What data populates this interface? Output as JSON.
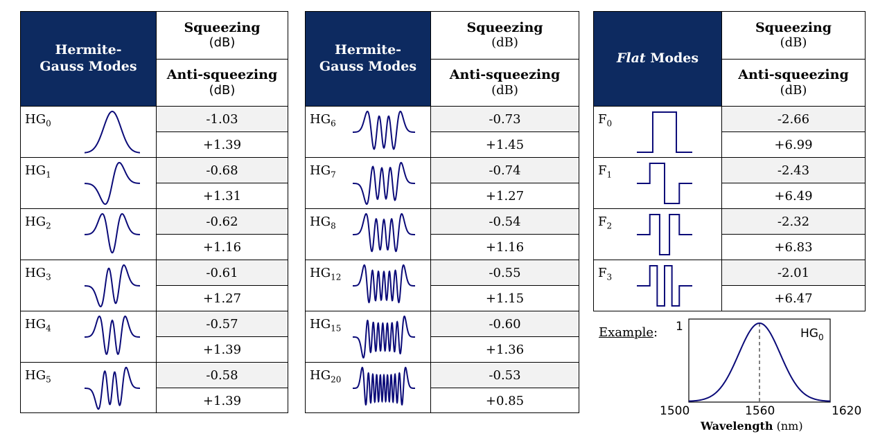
{
  "table1": {
    "header": {
      "modes": "Hermite-Gauss Modes",
      "squeezing": "Squeezing",
      "squeezing_unit": "(dB)",
      "anti": "Anti-squeezing",
      "anti_unit": "(dB)"
    },
    "rows": [
      {
        "label": "HG",
        "sub": "0",
        "squeezing": "-1.03",
        "anti": "+1.39"
      },
      {
        "label": "HG",
        "sub": "1",
        "squeezing": "-0.68",
        "anti": "+1.31"
      },
      {
        "label": "HG",
        "sub": "2",
        "squeezing": "-0.62",
        "anti": "+1.16"
      },
      {
        "label": "HG",
        "sub": "3",
        "squeezing": "-0.61",
        "anti": "+1.27"
      },
      {
        "label": "HG",
        "sub": "4",
        "squeezing": "-0.57",
        "anti": "+1.39"
      },
      {
        "label": "HG",
        "sub": "5",
        "squeezing": "-0.58",
        "anti": "+1.39"
      }
    ]
  },
  "table2": {
    "header": {
      "modes": "Hermite-Gauss Modes",
      "squeezing": "Squeezing",
      "squeezing_unit": "(dB)",
      "anti": "Anti-squeezing",
      "anti_unit": "(dB)"
    },
    "rows": [
      {
        "label": "HG",
        "sub": "6",
        "squeezing": "-0.73",
        "anti": "+1.45"
      },
      {
        "label": "HG",
        "sub": "7",
        "squeezing": "-0.74",
        "anti": "+1.27"
      },
      {
        "label": "HG",
        "sub": "8",
        "squeezing": "-0.54",
        "anti": "+1.16"
      },
      {
        "label": "HG",
        "sub": "12",
        "squeezing": "-0.55",
        "anti": "+1.15"
      },
      {
        "label": "HG",
        "sub": "15",
        "squeezing": "-0.60",
        "anti": "+1.36"
      },
      {
        "label": "HG",
        "sub": "20",
        "squeezing": "-0.53",
        "anti": "+0.85"
      }
    ]
  },
  "table3": {
    "header": {
      "modes_italic": "Flat",
      "modes_rest": " Modes",
      "squeezing": "Squeezing",
      "squeezing_unit": "(dB)",
      "anti": "Anti-squeezing",
      "anti_unit": "(dB)"
    },
    "rows": [
      {
        "label": "F",
        "sub": "0",
        "squeezing": "-2.66",
        "anti": "+6.99"
      },
      {
        "label": "F",
        "sub": "1",
        "squeezing": "-2.43",
        "anti": "+6.49"
      },
      {
        "label": "F",
        "sub": "2",
        "squeezing": "-2.32",
        "anti": "+6.83"
      },
      {
        "label": "F",
        "sub": "3",
        "squeezing": "-2.01",
        "anti": "+6.47"
      }
    ]
  },
  "example": {
    "label": "Example",
    "colon": ":",
    "y_tick": "1",
    "mode_label": "HG",
    "mode_sub": "0",
    "x_ticks": [
      "1500",
      "1560",
      "1620"
    ],
    "xlabel_bold": "Wavelength",
    "xlabel_unit": "(nm)"
  },
  "colors": {
    "header_bg": "#0d2a60",
    "curve": "#0a0a78",
    "squeezing_bg": "#f2f2f2"
  }
}
